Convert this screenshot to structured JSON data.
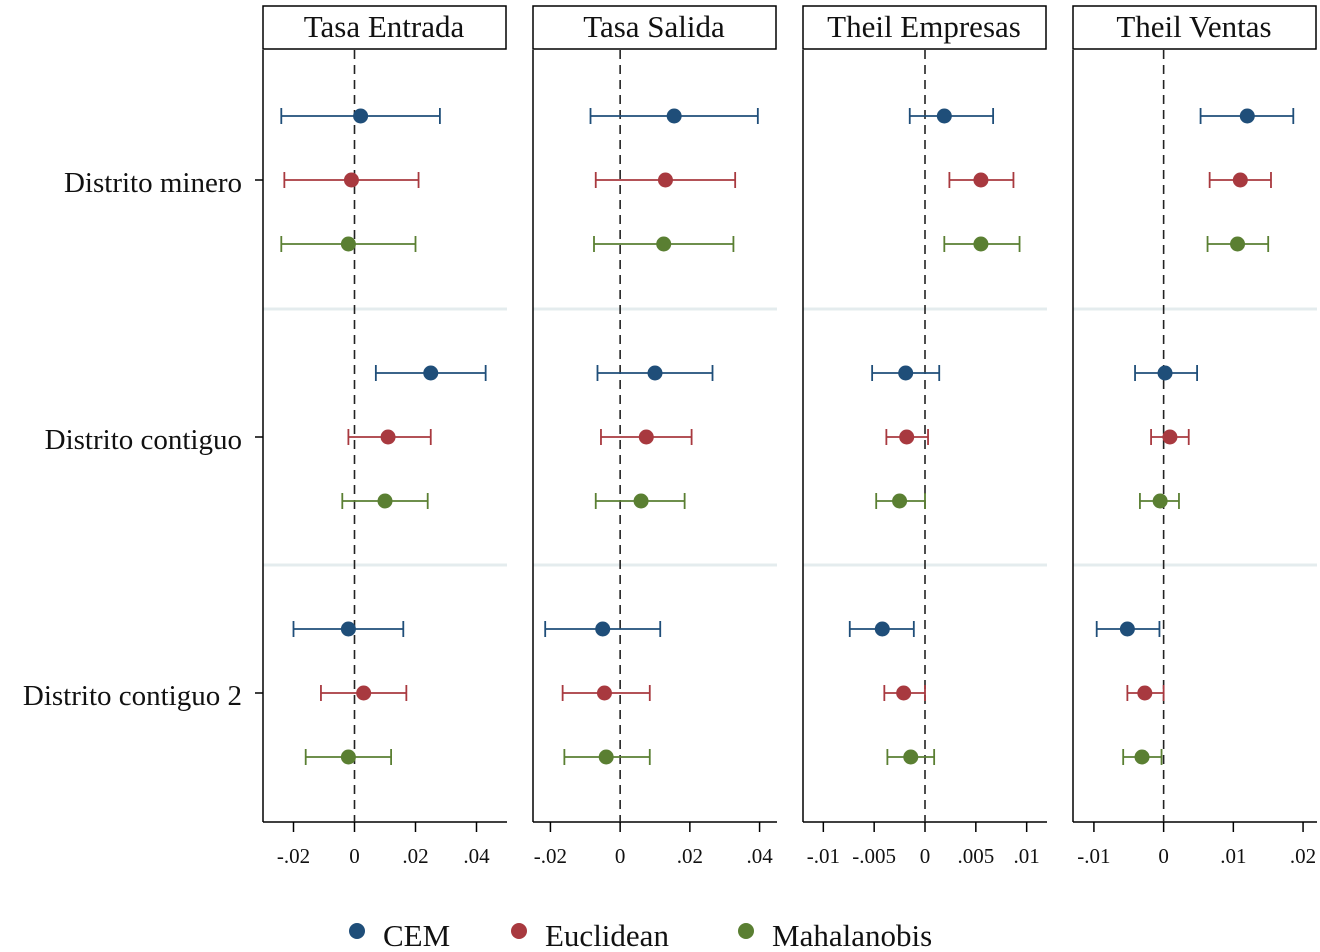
{
  "chart_data": {
    "type": "scatter",
    "subtype": "coefficient-plot-with-confidence-intervals",
    "rows": [
      "Distrito minero",
      "Distrito contiguo",
      "Distrito contiguo 2"
    ],
    "series_names": [
      "CEM",
      "Euclidean",
      "Mahalanobis"
    ],
    "colors": {
      "CEM": "#1f4e79",
      "Euclidean": "#a8393f",
      "Mahalanobis": "#5a7f32"
    },
    "reference_line": 0,
    "grid": false,
    "legend_position": "bottom",
    "panels": [
      {
        "title": "Tasa Entrada",
        "xlim": [
          -0.03,
          0.05
        ],
        "ticks": [
          -0.02,
          0,
          0.02,
          0.04
        ],
        "tick_labels": [
          "-.02",
          "0",
          ".02",
          ".04"
        ],
        "data": [
          [
            {
              "est": 0.002,
              "lo": -0.024,
              "hi": 0.028
            },
            {
              "est": -0.001,
              "lo": -0.023,
              "hi": 0.021
            },
            {
              "est": -0.002,
              "lo": -0.024,
              "hi": 0.02
            }
          ],
          [
            {
              "est": 0.025,
              "lo": 0.007,
              "hi": 0.043
            },
            {
              "est": 0.011,
              "lo": -0.002,
              "hi": 0.025
            },
            {
              "est": 0.01,
              "lo": -0.004,
              "hi": 0.024
            }
          ],
          [
            {
              "est": -0.002,
              "lo": -0.02,
              "hi": 0.016
            },
            {
              "est": 0.003,
              "lo": -0.011,
              "hi": 0.017
            },
            {
              "est": -0.002,
              "lo": -0.016,
              "hi": 0.012
            }
          ]
        ]
      },
      {
        "title": "Tasa Salida",
        "xlim": [
          -0.025,
          0.045
        ],
        "ticks": [
          -0.02,
          0,
          0.02,
          0.04
        ],
        "tick_labels": [
          "-.02",
          "0",
          ".02",
          ".04"
        ],
        "data": [
          [
            {
              "est": 0.0155,
              "lo": -0.0085,
              "hi": 0.0395
            },
            {
              "est": 0.013,
              "lo": -0.007,
              "hi": 0.033
            },
            {
              "est": 0.0125,
              "lo": -0.0075,
              "hi": 0.0325
            }
          ],
          [
            {
              "est": 0.01,
              "lo": -0.0065,
              "hi": 0.0265
            },
            {
              "est": 0.0075,
              "lo": -0.0055,
              "hi": 0.0205
            },
            {
              "est": 0.006,
              "lo": -0.007,
              "hi": 0.0185
            }
          ],
          [
            {
              "est": -0.005,
              "lo": -0.0215,
              "hi": 0.0115
            },
            {
              "est": -0.0045,
              "lo": -0.0165,
              "hi": 0.0085
            },
            {
              "est": -0.004,
              "lo": -0.016,
              "hi": 0.0085
            }
          ]
        ]
      },
      {
        "title": "Theil Empresas",
        "xlim": [
          -0.012,
          0.012
        ],
        "ticks": [
          -0.01,
          -0.005,
          0,
          0.005,
          0.01
        ],
        "tick_labels": [
          "-.01",
          "-.005",
          "0",
          ".005",
          ".01"
        ],
        "data": [
          [
            {
              "est": 0.0019,
              "lo": -0.0015,
              "hi": 0.0067
            },
            {
              "est": 0.0055,
              "lo": 0.0024,
              "hi": 0.0087
            },
            {
              "est": 0.0055,
              "lo": 0.0019,
              "hi": 0.0093
            }
          ],
          [
            {
              "est": -0.0019,
              "lo": -0.0052,
              "hi": 0.0014
            },
            {
              "est": -0.0018,
              "lo": -0.0038,
              "hi": 0.0003
            },
            {
              "est": -0.0025,
              "lo": -0.0048,
              "hi": 0
            }
          ],
          [
            {
              "est": -0.0042,
              "lo": -0.0074,
              "hi": -0.0011
            },
            {
              "est": -0.0021,
              "lo": -0.004,
              "hi": 0
            },
            {
              "est": -0.0014,
              "lo": -0.0037,
              "hi": 0.0009
            }
          ]
        ]
      },
      {
        "title": "Theil Ventas",
        "xlim": [
          -0.013,
          0.022
        ],
        "ticks": [
          -0.01,
          0,
          0.01,
          0.02
        ],
        "tick_labels": [
          "-.01",
          "0",
          ".01",
          ".02"
        ],
        "data": [
          [
            {
              "est": 0.012,
              "lo": 0.0053,
              "hi": 0.0186
            },
            {
              "est": 0.011,
              "lo": 0.0066,
              "hi": 0.0154
            },
            {
              "est": 0.0106,
              "lo": 0.0063,
              "hi": 0.015
            }
          ],
          [
            {
              "est": 0.0002,
              "lo": -0.0041,
              "hi": 0.0048
            },
            {
              "est": 0.0009,
              "lo": -0.0018,
              "hi": 0.0036
            },
            {
              "est": -0.0005,
              "lo": -0.0034,
              "hi": 0.0022
            }
          ],
          [
            {
              "est": -0.0052,
              "lo": -0.0096,
              "hi": -0.0006
            },
            {
              "est": -0.0027,
              "lo": -0.0052,
              "hi": 0
            },
            {
              "est": -0.0031,
              "lo": -0.0058,
              "hi": -0.0003
            }
          ]
        ]
      }
    ]
  }
}
